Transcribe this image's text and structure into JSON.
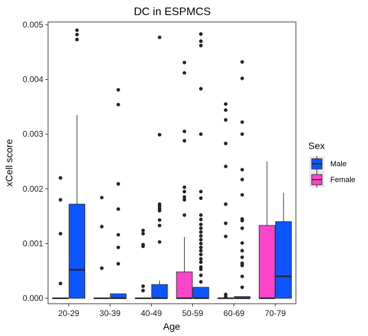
{
  "chart_data": {
    "type": "boxplot",
    "title": "DC in ESPMCS",
    "xlabel": "Age",
    "ylabel": "xCell score",
    "categories": [
      "20-29",
      "30-39",
      "40-49",
      "50-59",
      "60-69",
      "70-79"
    ],
    "yticks": [
      "0.000",
      "0.001",
      "0.002",
      "0.003",
      "0.004",
      "0.005"
    ],
    "ylim": [
      -0.0001,
      0.00505
    ],
    "legend": {
      "title": "Sex",
      "placement": "right",
      "entries": [
        {
          "label": "Male",
          "color": "#0d55ff"
        },
        {
          "label": "Female",
          "color": "#ff44cc"
        }
      ]
    },
    "grid": false,
    "series": [
      {
        "name": "Male",
        "color": "#0d55ff",
        "boxes": [
          {
            "category": "20-29",
            "slot": 1,
            "whislo": 0.0,
            "q1": 0.0,
            "med": 0.00052,
            "q3": 0.00172,
            "whishi": 0.00335,
            "fliers": [
              0.00473,
              0.00482,
              0.0049
            ]
          },
          {
            "category": "30-39",
            "slot": 1,
            "whislo": 0.0,
            "q1": 0.0,
            "med": 0.0,
            "q3": 8e-05,
            "whishi": 8e-05,
            "fliers": [
              0.00063,
              0.00093,
              0.00116,
              0.00163,
              0.00209,
              0.00354,
              0.00381
            ]
          },
          {
            "category": "40-49",
            "slot": 1,
            "whislo": 0.0,
            "q1": 0.0,
            "med": 0.0,
            "q3": 0.00025,
            "whishi": 0.00032,
            "fliers": [
              0.00103,
              0.00133,
              0.00143,
              0.0016,
              0.00164,
              0.00168,
              0.00172,
              0.00299,
              0.00477
            ]
          },
          {
            "category": "50-59",
            "slot": 1,
            "whislo": 0.0,
            "q1": 0.0,
            "med": 0.0,
            "q3": 0.0002,
            "whishi": 0.0002,
            "fliers": [
              0.0003,
              0.00042,
              0.00053,
              0.00057,
              0.00066,
              0.00072,
              0.0008,
              0.00087,
              0.00093,
              0.001,
              0.00107,
              0.00114,
              0.00121,
              0.00128,
              0.00135,
              0.00144,
              0.00152,
              0.00183,
              0.00195,
              0.003,
              0.00383,
              0.00462,
              0.0047,
              0.00483
            ]
          },
          {
            "category": "60-69",
            "slot": 1,
            "whislo": 0.0,
            "q1": 0.0,
            "med": 0.0,
            "q3": 3e-05,
            "whishi": 3e-05,
            "fliers": [
              0.0002,
              0.0004,
              0.0006,
              0.00064,
              0.00075,
              0.00087,
              0.00101,
              0.00128,
              0.00142,
              0.00145,
              0.00189,
              0.00217,
              0.00235,
              0.003,
              0.00322,
              0.00402,
              0.00432
            ]
          },
          {
            "category": "70-79",
            "slot": 1,
            "whislo": 0.0,
            "q1": 0.0,
            "med": 0.0004,
            "q3": 0.0014,
            "whishi": 0.00193,
            "fliers": []
          }
        ]
      },
      {
        "name": "Female",
        "color": "#ff44cc",
        "boxes": [
          {
            "category": "20-29",
            "slot": 0,
            "whislo": 0.0,
            "q1": 0.0,
            "med": 0.0,
            "q3": 0.0,
            "whishi": 0.0,
            "fliers": [
              0.00027,
              0.00118,
              0.0018,
              0.0022
            ]
          },
          {
            "category": "30-39",
            "slot": 0,
            "whislo": 0.0,
            "q1": 0.0,
            "med": 0.0,
            "q3": 0.0,
            "whishi": 0.0,
            "fliers": [
              0.00055,
              0.00131,
              0.00184
            ]
          },
          {
            "category": "40-49",
            "slot": 0,
            "whislo": 0.0,
            "q1": 0.0,
            "med": 0.0,
            "q3": 0.0,
            "whishi": 0.0,
            "fliers": [
              0.00014,
              0.00022,
              0.00095,
              0.00098,
              0.00118,
              0.00124
            ]
          },
          {
            "category": "50-59",
            "slot": 0,
            "whislo": 0.0,
            "q1": 0.0,
            "med": 0.0,
            "q3": 0.00048,
            "whishi": 0.00112,
            "fliers": [
              0.00152,
              0.0018,
              0.00185,
              0.00195,
              0.00203,
              0.00288,
              0.00305,
              0.00412,
              0.00431
            ]
          },
          {
            "category": "60-69",
            "slot": 0,
            "whislo": 0.0,
            "q1": 0.0,
            "med": 0.0,
            "q3": 0.0,
            "whishi": 0.0,
            "fliers": [
              3e-05,
              7e-05,
              0.00113,
              0.00137,
              0.00172,
              0.00241,
              0.00283,
              0.00326,
              0.00344,
              0.00355
            ]
          },
          {
            "category": "70-79",
            "slot": 0,
            "whislo": 0.0,
            "q1": 0.0,
            "med": 0.0,
            "q3": 0.00133,
            "whishi": 0.0025,
            "fliers": []
          }
        ]
      }
    ]
  }
}
